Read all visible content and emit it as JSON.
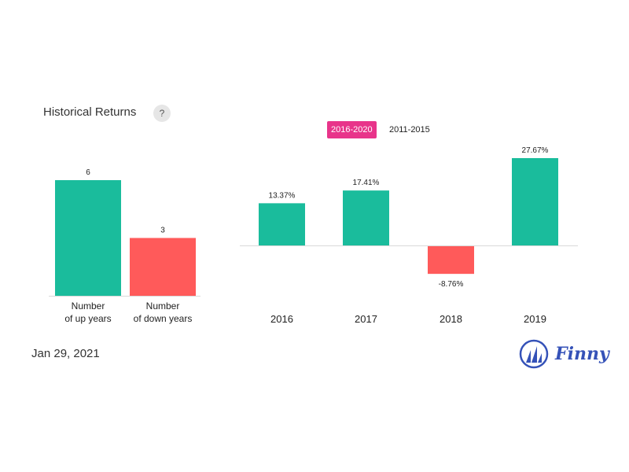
{
  "header": {
    "title": "Historical Returns",
    "help_label": "?"
  },
  "tabs": [
    {
      "label": "2016-2020",
      "active": true
    },
    {
      "label": "2011-2015",
      "active": false
    }
  ],
  "footer": {
    "date": "Jan 29, 2021",
    "brand": "Finny"
  },
  "colors": {
    "positive": "#1abc9c",
    "negative": "#ff5a5a",
    "accent": "#e8348a",
    "brand": "#3552b8"
  },
  "chart_data": [
    {
      "type": "bar",
      "categories": [
        [
          "Number",
          "of up years"
        ],
        [
          "Number",
          "of down years"
        ]
      ],
      "values": [
        6,
        3
      ],
      "value_labels": [
        "6",
        "3"
      ],
      "ylim": [
        0,
        6
      ]
    },
    {
      "type": "bar",
      "categories": [
        "2016",
        "2017",
        "2018",
        "2019"
      ],
      "values": [
        13.37,
        17.41,
        -8.76,
        27.67
      ],
      "value_labels": [
        "13.37%",
        "17.41%",
        "-8.76%",
        "27.67%"
      ],
      "unit": "%"
    }
  ]
}
